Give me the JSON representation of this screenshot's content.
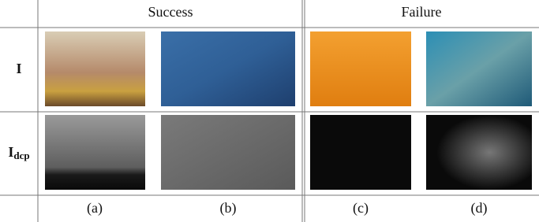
{
  "header": {
    "groups": [
      "Success",
      "Failure"
    ]
  },
  "rows": [
    {
      "label": {
        "main": "I"
      }
    },
    {
      "label": {
        "main": "I",
        "sub": "dcp"
      }
    }
  ],
  "captions": [
    "(a)",
    "(b)",
    "(c)",
    "(d)"
  ]
}
